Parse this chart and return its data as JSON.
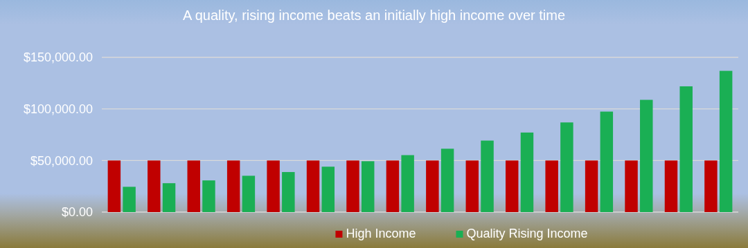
{
  "chart_data": {
    "type": "bar",
    "title": "A quality, rising income beats an initially high income over time",
    "categories": [
      null,
      null,
      null,
      null,
      null,
      null,
      null,
      null,
      null,
      null,
      null,
      null,
      null,
      null,
      null,
      null
    ],
    "series": [
      {
        "name": "High Income",
        "color": "#c00000",
        "values": [
          50000,
          50000,
          50000,
          50000,
          50000,
          50000,
          50000,
          50000,
          50000,
          50000,
          50000,
          50000,
          50000,
          50000,
          50000,
          50000
        ]
      },
      {
        "name": "Quality Rising Income",
        "color": "#1aaf54",
        "values": [
          24500,
          28000,
          30700,
          35200,
          38800,
          44000,
          49300,
          55200,
          61400,
          69300,
          77100,
          86900,
          97400,
          108800,
          121900,
          136900
        ]
      }
    ],
    "ylim": [
      0,
      150000
    ],
    "yticks": [
      {
        "value": 0,
        "label": "$0.00"
      },
      {
        "value": 50000,
        "label": "$50,000.00"
      },
      {
        "value": 100000,
        "label": "$100,000.00"
      },
      {
        "value": 150000,
        "label": "$150,000.00"
      }
    ],
    "grid": "y",
    "legend": "bottom",
    "tick_labels": "y"
  }
}
